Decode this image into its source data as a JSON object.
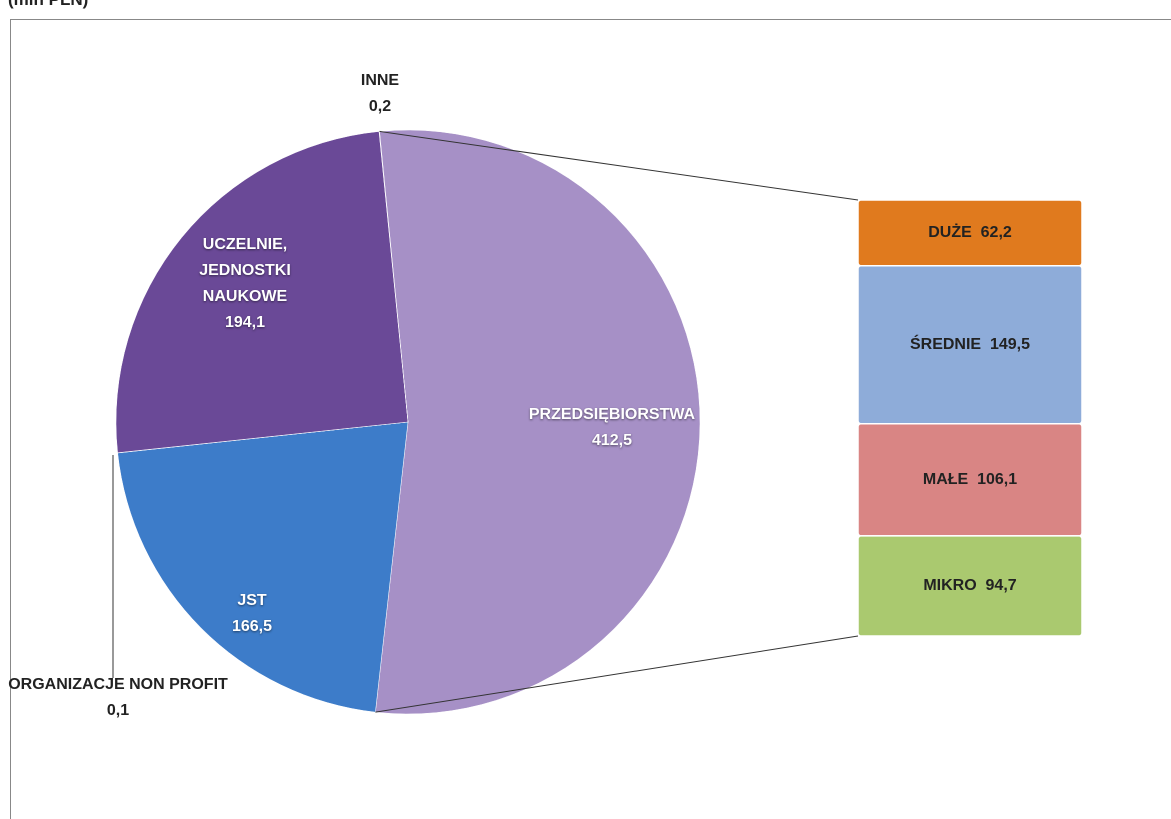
{
  "chart_data": {
    "type": "pie",
    "title": "(mln PLN)",
    "categories": [
      "PRZEDSIĘBIORSTWA",
      "JST",
      "ORGANIZACJE NON PROFIT",
      "UCZELNIE, JEDNOSTKI NAUKOWE",
      "INNE"
    ],
    "values": [
      412.5,
      166.5,
      0.1,
      194.1,
      0.2
    ],
    "value_labels": [
      "412,5",
      "166,5",
      "0,1",
      "194,1",
      "0,2"
    ],
    "colors": [
      "#a690c6",
      "#3d7cc9",
      "#7cb4f0",
      "#6a4997",
      "#8b6cb8"
    ],
    "breakdown": {
      "type": "stacked-bar",
      "of": "PRZEDSIĘBIORSTWA",
      "categories": [
        "DUŻE",
        "ŚREDNIE",
        "MAŁE",
        "MIKRO"
      ],
      "values": [
        62.2,
        149.5,
        106.1,
        94.7
      ],
      "value_labels": [
        "62,2",
        "149,5",
        "106,1",
        "94,7"
      ],
      "colors": [
        "#e07a1e",
        "#8eacd9",
        "#d98584",
        "#aac96f"
      ]
    }
  }
}
